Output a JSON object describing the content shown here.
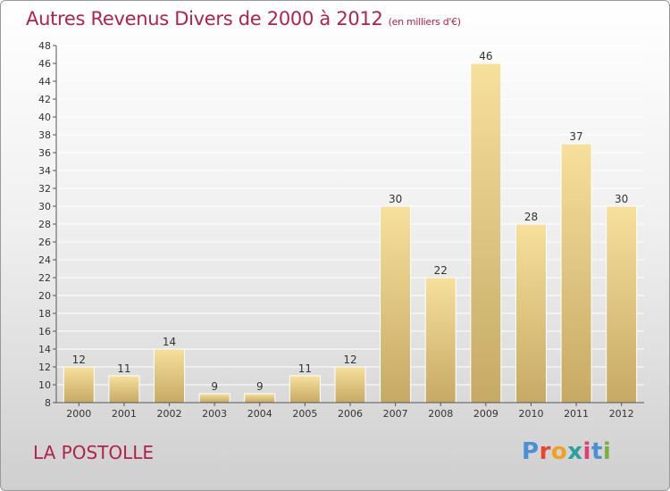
{
  "header": {
    "title": "Autres Revenus Divers de 2000 à 2012",
    "subtitle": "(en milliers d'€)"
  },
  "footer": {
    "place": "LA POSTOLLE",
    "logo_text": "Proxiti"
  },
  "colors": {
    "title": "#b3224a",
    "bar_light": "#f5de9a",
    "bar_dark": "#c7aa62",
    "logo": [
      "#4a8fd8",
      "#e8452f",
      "#f0a020",
      "#2aa0a0",
      "#e04070",
      "#4a8fd8",
      "#7ab040"
    ]
  },
  "chart_data": {
    "type": "bar",
    "categories": [
      "2000",
      "2001",
      "2002",
      "2003",
      "2004",
      "2005",
      "2006",
      "2007",
      "2008",
      "2009",
      "2010",
      "2011",
      "2012"
    ],
    "values": [
      12,
      11,
      14,
      9,
      9,
      11,
      12,
      30,
      22,
      46,
      28,
      37,
      30
    ],
    "ylim": [
      8,
      48
    ],
    "yticks": [
      8,
      10,
      12,
      14,
      16,
      18,
      20,
      22,
      24,
      26,
      28,
      30,
      32,
      34,
      36,
      38,
      40,
      42,
      44,
      46,
      48
    ],
    "grid": true,
    "xlabel": "",
    "ylabel": ""
  }
}
